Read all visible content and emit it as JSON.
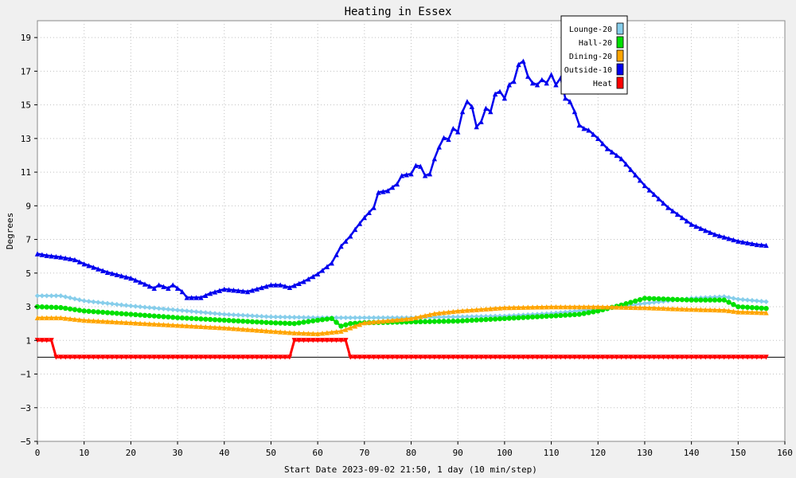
{
  "chart_data": {
    "type": "line",
    "title": "Heating in Essex",
    "xlabel": "Start Date 2023-09-02 21:50, 1 day (10 min/step)",
    "ylabel": "Degrees",
    "xlim": [
      0,
      160
    ],
    "ylim": [
      -5,
      20
    ],
    "x_ticks": [
      0,
      10,
      20,
      30,
      40,
      50,
      60,
      70,
      80,
      90,
      100,
      110,
      120,
      130,
      140,
      150,
      160
    ],
    "y_ticks": [
      -5,
      -3,
      -1,
      1,
      3,
      5,
      7,
      9,
      11,
      13,
      15,
      17,
      19
    ],
    "grid": true,
    "legend_position": "top-right",
    "series": [
      {
        "name": "Lounge-20",
        "color": "#87ceeb",
        "marker": "diamond",
        "points": [
          [
            0,
            3.65
          ],
          [
            5,
            3.65
          ],
          [
            10,
            3.35
          ],
          [
            20,
            3.05
          ],
          [
            30,
            2.8
          ],
          [
            40,
            2.55
          ],
          [
            50,
            2.4
          ],
          [
            60,
            2.35
          ],
          [
            70,
            2.35
          ],
          [
            80,
            2.35
          ],
          [
            90,
            2.4
          ],
          [
            100,
            2.45
          ],
          [
            110,
            2.6
          ],
          [
            120,
            2.85
          ],
          [
            130,
            3.2
          ],
          [
            140,
            3.5
          ],
          [
            147,
            3.6
          ],
          [
            150,
            3.45
          ],
          [
            156,
            3.3
          ]
        ]
      },
      {
        "name": "Hall-20",
        "color": "#00e000",
        "marker": "circle",
        "points": [
          [
            0,
            3.0
          ],
          [
            5,
            2.95
          ],
          [
            10,
            2.75
          ],
          [
            20,
            2.55
          ],
          [
            30,
            2.35
          ],
          [
            40,
            2.2
          ],
          [
            50,
            2.05
          ],
          [
            55,
            2.0
          ],
          [
            60,
            2.2
          ],
          [
            63,
            2.3
          ],
          [
            65,
            1.85
          ],
          [
            67,
            2.0
          ],
          [
            70,
            2.05
          ],
          [
            80,
            2.1
          ],
          [
            90,
            2.15
          ],
          [
            100,
            2.3
          ],
          [
            110,
            2.45
          ],
          [
            116,
            2.55
          ],
          [
            120,
            2.75
          ],
          [
            125,
            3.1
          ],
          [
            130,
            3.5
          ],
          [
            135,
            3.45
          ],
          [
            140,
            3.4
          ],
          [
            147,
            3.4
          ],
          [
            150,
            3.0
          ],
          [
            156,
            2.9
          ]
        ]
      },
      {
        "name": "Dining-20",
        "color": "#ffa500",
        "marker": "triangle",
        "points": [
          [
            0,
            2.35
          ],
          [
            5,
            2.35
          ],
          [
            10,
            2.2
          ],
          [
            20,
            2.05
          ],
          [
            30,
            1.9
          ],
          [
            40,
            1.75
          ],
          [
            50,
            1.55
          ],
          [
            55,
            1.45
          ],
          [
            60,
            1.4
          ],
          [
            65,
            1.55
          ],
          [
            70,
            2.05
          ],
          [
            80,
            2.3
          ],
          [
            85,
            2.6
          ],
          [
            90,
            2.75
          ],
          [
            100,
            2.95
          ],
          [
            110,
            3.0
          ],
          [
            120,
            3.0
          ],
          [
            130,
            2.95
          ],
          [
            140,
            2.85
          ],
          [
            147,
            2.8
          ],
          [
            150,
            2.7
          ],
          [
            156,
            2.65
          ]
        ]
      },
      {
        "name": "Outside-10",
        "color": "#0000ee",
        "marker": "triangle",
        "points": [
          [
            0,
            6.15
          ],
          [
            2,
            6.05
          ],
          [
            5,
            5.95
          ],
          [
            8,
            5.8
          ],
          [
            10,
            5.55
          ],
          [
            15,
            5.05
          ],
          [
            20,
            4.7
          ],
          [
            23,
            4.35
          ],
          [
            25,
            4.1
          ],
          [
            26,
            4.3
          ],
          [
            28,
            4.1
          ],
          [
            29,
            4.3
          ],
          [
            31,
            3.9
          ],
          [
            32,
            3.55
          ],
          [
            35,
            3.55
          ],
          [
            37,
            3.8
          ],
          [
            40,
            4.05
          ],
          [
            45,
            3.9
          ],
          [
            50,
            4.3
          ],
          [
            52,
            4.3
          ],
          [
            54,
            4.15
          ],
          [
            57,
            4.5
          ],
          [
            60,
            4.95
          ],
          [
            63,
            5.6
          ],
          [
            65,
            6.6
          ],
          [
            67,
            7.2
          ],
          [
            68,
            7.6
          ],
          [
            70,
            8.3
          ],
          [
            72,
            8.9
          ],
          [
            73,
            9.8
          ],
          [
            75,
            9.9
          ],
          [
            77,
            10.3
          ],
          [
            78,
            10.8
          ],
          [
            80,
            10.9
          ],
          [
            81,
            11.4
          ],
          [
            82,
            11.35
          ],
          [
            83,
            10.8
          ],
          [
            84,
            10.9
          ],
          [
            85,
            11.8
          ],
          [
            86,
            12.5
          ],
          [
            87,
            13.05
          ],
          [
            88,
            12.95
          ],
          [
            89,
            13.6
          ],
          [
            90,
            13.4
          ],
          [
            91,
            14.6
          ],
          [
            92,
            15.2
          ],
          [
            93,
            14.9
          ],
          [
            94,
            13.7
          ],
          [
            95,
            14.0
          ],
          [
            96,
            14.8
          ],
          [
            97,
            14.6
          ],
          [
            98,
            15.65
          ],
          [
            99,
            15.8
          ],
          [
            100,
            15.4
          ],
          [
            101,
            16.2
          ],
          [
            102,
            16.4
          ],
          [
            103,
            17.4
          ],
          [
            104,
            17.6
          ],
          [
            105,
            16.7
          ],
          [
            106,
            16.3
          ],
          [
            107,
            16.2
          ],
          [
            108,
            16.5
          ],
          [
            109,
            16.3
          ],
          [
            110,
            16.8
          ],
          [
            111,
            16.2
          ],
          [
            112,
            16.6
          ],
          [
            113,
            15.4
          ],
          [
            114,
            15.2
          ],
          [
            115,
            14.6
          ],
          [
            116,
            13.8
          ],
          [
            117,
            13.6
          ],
          [
            118,
            13.5
          ],
          [
            120,
            13.0
          ],
          [
            122,
            12.4
          ],
          [
            125,
            11.8
          ],
          [
            130,
            10.2
          ],
          [
            135,
            8.9
          ],
          [
            140,
            7.9
          ],
          [
            145,
            7.3
          ],
          [
            150,
            6.9
          ],
          [
            154,
            6.7
          ],
          [
            156,
            6.65
          ]
        ]
      },
      {
        "name": "Heat",
        "color": "#ff0000",
        "marker": "triangle-down",
        "points": [
          [
            0,
            1.0
          ],
          [
            3,
            1.0
          ],
          [
            4,
            0.0
          ],
          [
            54,
            0.0
          ],
          [
            55,
            1.0
          ],
          [
            66,
            1.0
          ],
          [
            67,
            0.0
          ],
          [
            156,
            0.0
          ]
        ]
      }
    ]
  }
}
